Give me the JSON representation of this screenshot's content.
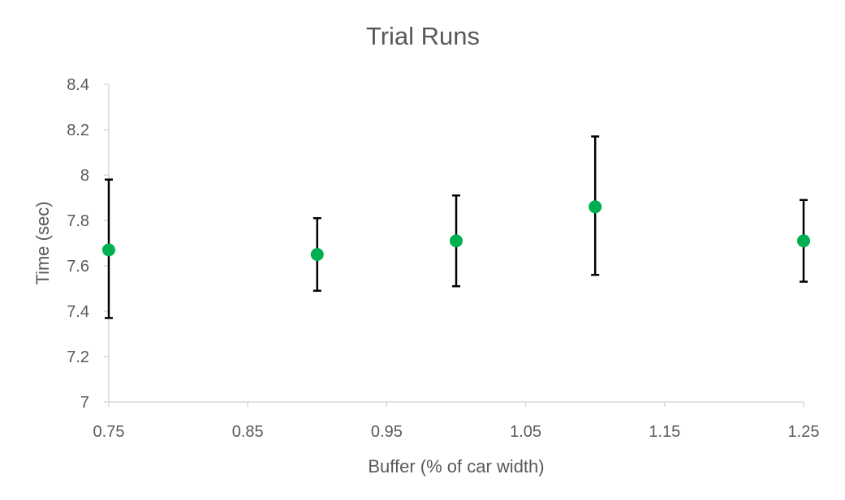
{
  "chart_data": {
    "type": "scatter",
    "title": "Trial Runs",
    "xlabel": "Buffer (% of car width)",
    "ylabel": "Time (sec)",
    "xlim": [
      0.75,
      1.25
    ],
    "ylim": [
      7,
      8.4
    ],
    "xticks": [
      "0.75",
      "0.85",
      "0.95",
      "1.05",
      "1.15",
      "1.25"
    ],
    "yticks": [
      "7",
      "7.2",
      "7.4",
      "7.6",
      "7.8",
      "8",
      "8.2",
      "8.4"
    ],
    "grid": false,
    "legend": false,
    "marker_color": "#00b050",
    "error_bar_color": "#000000",
    "series": [
      {
        "points": [
          {
            "x": 0.75,
            "y": 7.67,
            "err_low": 7.37,
            "err_high": 7.98
          },
          {
            "x": 0.9,
            "y": 7.65,
            "err_low": 7.49,
            "err_high": 7.81
          },
          {
            "x": 1.0,
            "y": 7.71,
            "err_low": 7.51,
            "err_high": 7.91
          },
          {
            "x": 1.1,
            "y": 7.86,
            "err_low": 7.56,
            "err_high": 8.17
          },
          {
            "x": 1.25,
            "y": 7.71,
            "err_low": 7.53,
            "err_high": 7.89
          }
        ]
      }
    ]
  }
}
